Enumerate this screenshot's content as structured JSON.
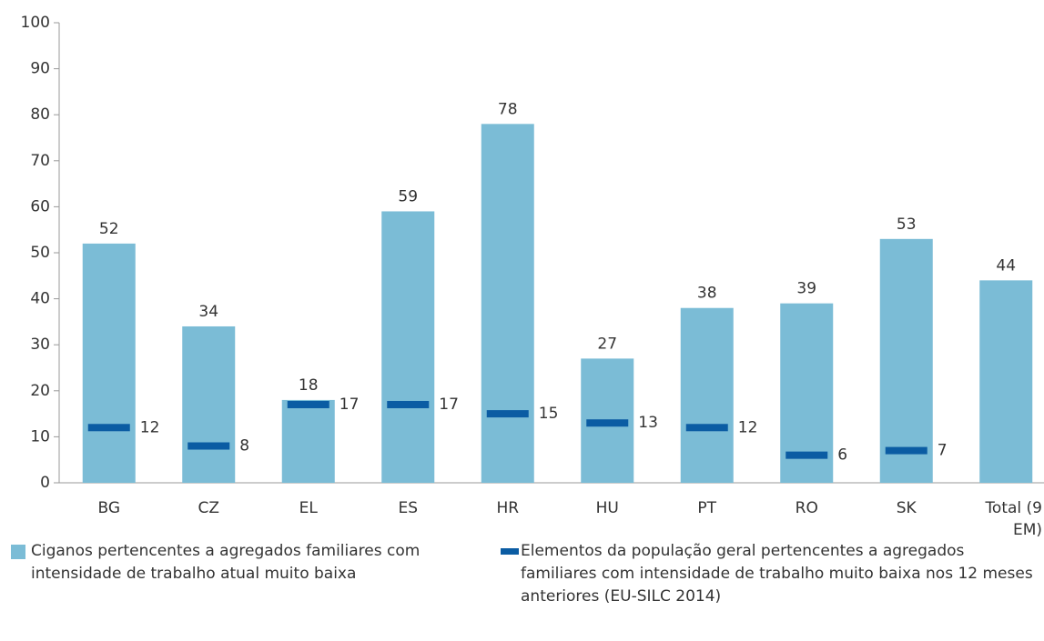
{
  "chart_data": {
    "type": "bar",
    "categories": [
      "BG",
      "CZ",
      "EL",
      "ES",
      "HR",
      "HU",
      "PT",
      "RO",
      "SK",
      "Total (9 EM)"
    ],
    "series": [
      {
        "name": "Ciganos pertencentes a agregados familiares com intensidade de trabalho atual muito baixa",
        "type": "bar",
        "color": "#7bbcd6",
        "values": [
          52,
          34,
          18,
          59,
          78,
          27,
          38,
          39,
          53,
          44
        ]
      },
      {
        "name": "Elementos da população geral pertencentes a agregados familiares com intensidade de trabalho muito baixa nos 12 meses anteriores (EU-SILC 2014)",
        "type": "marker",
        "color": "#0b5ca3",
        "values": [
          12,
          8,
          17,
          17,
          15,
          13,
          12,
          6,
          7,
          null
        ]
      }
    ],
    "ylim": [
      0,
      100
    ],
    "yticks": [
      0,
      10,
      20,
      30,
      40,
      50,
      60,
      70,
      80,
      90,
      100
    ]
  }
}
